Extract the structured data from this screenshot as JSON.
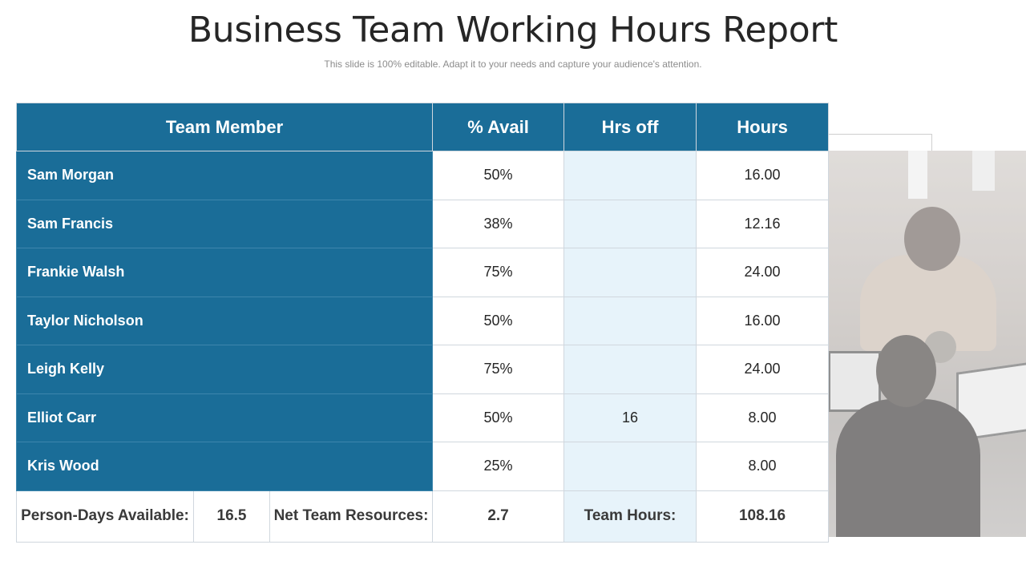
{
  "slide": {
    "title": "Business Team Working Hours Report",
    "subtitle": "This slide is 100% editable. Adapt it to your needs and capture your audience's attention."
  },
  "table": {
    "headers": {
      "member": "Team Member",
      "avail": "% Avail",
      "hrs_off": "Hrs off",
      "hours": "Hours"
    },
    "rows": [
      {
        "member": "Sam Morgan",
        "avail": "50%",
        "hrs_off": "",
        "hours": "16.00"
      },
      {
        "member": "Sam Francis",
        "avail": "38%",
        "hrs_off": "",
        "hours": "12.16"
      },
      {
        "member": "Frankie Walsh",
        "avail": "75%",
        "hrs_off": "",
        "hours": "24.00"
      },
      {
        "member": "Taylor Nicholson",
        "avail": "50%",
        "hrs_off": "",
        "hours": "16.00"
      },
      {
        "member": "Leigh Kelly",
        "avail": "75%",
        "hrs_off": "",
        "hours": "24.00"
      },
      {
        "member": "Elliot Carr",
        "avail": "50%",
        "hrs_off": "16",
        "hours": "8.00"
      },
      {
        "member": "Kris Wood",
        "avail": "25%",
        "hrs_off": "",
        "hours": "8.00"
      }
    ],
    "footer": {
      "person_days_label": "Person-Days Available:",
      "person_days_value": "16.5",
      "net_team_label": "Net Team Resources:",
      "net_team_value": "2.7",
      "team_hours_label": "Team Hours:",
      "team_hours_value": "108.16"
    }
  },
  "colors": {
    "header_blue": "#1a6d98",
    "hrs_off_fill": "#e7f3fa"
  },
  "image": {
    "icon": "office-team-photo"
  }
}
